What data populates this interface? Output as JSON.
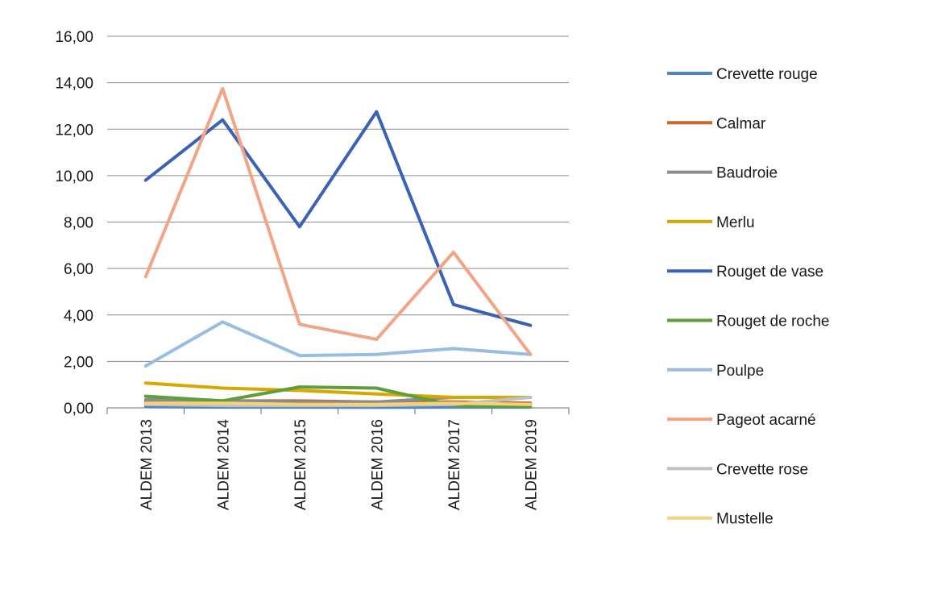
{
  "chart_data": {
    "type": "line",
    "title": "",
    "xlabel": "",
    "ylabel": "",
    "categories": [
      "ALDEM 2013",
      "ALDEM 2014",
      "ALDEM 2015",
      "ALDEM 2016",
      "ALDEM 2017",
      "ALDEM 2019"
    ],
    "ylim": [
      0,
      16
    ],
    "yticks": [
      "0,00",
      "2,00",
      "4,00",
      "6,00",
      "8,00",
      "10,00",
      "12,00",
      "14,00",
      "16,00"
    ],
    "grid": true,
    "legend_position": "right",
    "series": [
      {
        "name": "Crevette rouge",
        "color": "#4f86c6",
        "values": [
          0.05,
          0.03,
          0.03,
          0.02,
          0.03,
          0.03
        ]
      },
      {
        "name": "Calmar",
        "color": "#c8682c",
        "values": [
          0.25,
          0.3,
          0.3,
          0.25,
          0.25,
          0.2
        ]
      },
      {
        "name": "Baudroie",
        "color": "#8c8c8c",
        "values": [
          0.35,
          0.3,
          0.25,
          0.25,
          0.45,
          0.45
        ]
      },
      {
        "name": "Merlu",
        "color": "#d9a800",
        "values": [
          1.07,
          0.85,
          0.75,
          0.6,
          0.45,
          0.45
        ]
      },
      {
        "name": "Rouget de vase",
        "color": "#3b63b5",
        "values": [
          9.8,
          12.4,
          7.8,
          12.75,
          4.45,
          3.55
        ]
      },
      {
        "name": "Rouget de roche",
        "color": "#5f9e3a",
        "values": [
          0.5,
          0.3,
          0.9,
          0.85,
          0.1,
          0.05
        ]
      },
      {
        "name": "Poulpe",
        "color": "#97bde3",
        "values": [
          1.8,
          3.7,
          2.25,
          2.3,
          2.55,
          2.3
        ]
      },
      {
        "name": "Pageot acarné",
        "color": "#f2a486",
        "values": [
          5.65,
          13.75,
          3.6,
          2.95,
          6.7,
          2.3
        ]
      },
      {
        "name": "Crevette rose",
        "color": "#c0c0c0",
        "values": [
          0.15,
          0.1,
          0.1,
          0.1,
          0.15,
          0.45
        ]
      },
      {
        "name": "Mustelle",
        "color": "#f6d37a",
        "values": [
          0.2,
          0.2,
          0.15,
          0.15,
          0.2,
          0.15
        ]
      }
    ]
  }
}
